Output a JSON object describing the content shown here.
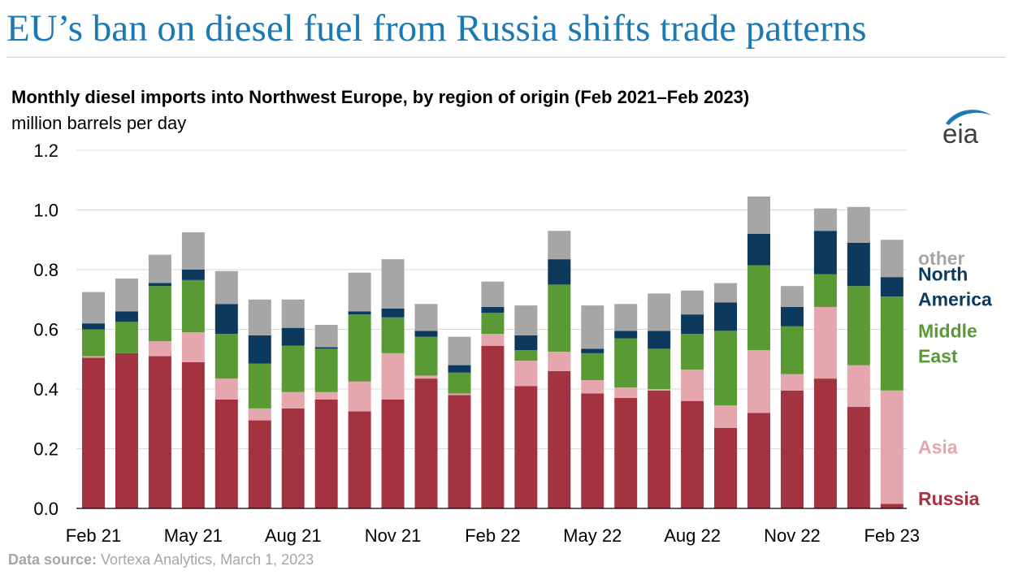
{
  "header": {
    "headline": "EU’s ban on diesel fuel from Russia shifts trade patterns"
  },
  "footer": {
    "source_label": "Data source:",
    "source_text": " Vortexa Analytics, March 1, 2023"
  },
  "logo": {
    "text": "eia",
    "icon": "eia-logo-icon",
    "color": "#1a7ab5"
  },
  "chart_data": {
    "type": "bar",
    "stacked": true,
    "title": "Monthly diesel imports into Northwest Europe, by region of origin (Feb 2021–Feb 2023)",
    "ylabel": "million barrels per day",
    "ylim": [
      0,
      1.2
    ],
    "yticks": [
      "0.0",
      "0.2",
      "0.4",
      "0.6",
      "0.8",
      "1.0",
      "1.2"
    ],
    "grid": true,
    "legend_placement": "right (inline labels)",
    "x_tick_labels": [
      {
        "index": 0,
        "label": "Feb 21"
      },
      {
        "index": 3,
        "label": "May 21"
      },
      {
        "index": 6,
        "label": "Aug 21"
      },
      {
        "index": 9,
        "label": "Nov 21"
      },
      {
        "index": 12,
        "label": "Feb 22"
      },
      {
        "index": 15,
        "label": "May 22"
      },
      {
        "index": 18,
        "label": "Aug 22"
      },
      {
        "index": 21,
        "label": "Nov 22"
      },
      {
        "index": 24,
        "label": "Feb 23"
      }
    ],
    "categories": [
      "Feb 21",
      "Mar 21",
      "Apr 21",
      "May 21",
      "Jun 21",
      "Jul 21",
      "Aug 21",
      "Sep 21",
      "Oct 21",
      "Nov 21",
      "Dec 21",
      "Jan 22",
      "Feb 22",
      "Mar 22",
      "Apr 22",
      "May 22",
      "Jun 22",
      "Jul 22",
      "Aug 22",
      "Sep 22",
      "Oct 22",
      "Nov 22",
      "Dec 22",
      "Jan 23",
      "Feb 23"
    ],
    "series": [
      {
        "name": "Russia",
        "color": "#a33340",
        "legend_lines": [
          "Russia"
        ],
        "values": [
          0.505,
          0.52,
          0.51,
          0.49,
          0.365,
          0.295,
          0.335,
          0.365,
          0.325,
          0.365,
          0.435,
          0.38,
          0.545,
          0.41,
          0.46,
          0.385,
          0.37,
          0.395,
          0.36,
          0.27,
          0.32,
          0.395,
          0.435,
          0.34,
          0.015
        ]
      },
      {
        "name": "Asia",
        "color": "#e5a6ad",
        "legend_lines": [
          "Asia"
        ],
        "values": [
          0.005,
          0.0,
          0.05,
          0.1,
          0.07,
          0.04,
          0.055,
          0.025,
          0.1,
          0.155,
          0.01,
          0.005,
          0.04,
          0.085,
          0.065,
          0.045,
          0.035,
          0.005,
          0.105,
          0.075,
          0.21,
          0.055,
          0.24,
          0.14,
          0.38
        ]
      },
      {
        "name": "Middle East",
        "color": "#5a9a35",
        "legend_lines": [
          "Middle",
          "East"
        ],
        "values": [
          0.09,
          0.105,
          0.185,
          0.175,
          0.15,
          0.15,
          0.155,
          0.145,
          0.225,
          0.12,
          0.13,
          0.07,
          0.07,
          0.035,
          0.225,
          0.09,
          0.165,
          0.135,
          0.12,
          0.25,
          0.285,
          0.16,
          0.11,
          0.265,
          0.315
        ]
      },
      {
        "name": "North America",
        "color": "#0d3a5c",
        "legend_lines": [
          "North",
          "America"
        ],
        "values": [
          0.02,
          0.035,
          0.01,
          0.035,
          0.1,
          0.095,
          0.06,
          0.005,
          0.01,
          0.03,
          0.02,
          0.025,
          0.02,
          0.05,
          0.085,
          0.015,
          0.025,
          0.06,
          0.065,
          0.095,
          0.105,
          0.065,
          0.145,
          0.145,
          0.065
        ]
      },
      {
        "name": "other",
        "color": "#a6a6a6",
        "legend_lines": [
          "other"
        ],
        "values": [
          0.105,
          0.11,
          0.095,
          0.125,
          0.11,
          0.12,
          0.095,
          0.075,
          0.13,
          0.165,
          0.09,
          0.095,
          0.085,
          0.1,
          0.095,
          0.145,
          0.09,
          0.125,
          0.08,
          0.065,
          0.125,
          0.07,
          0.075,
          0.12,
          0.125
        ]
      }
    ]
  }
}
